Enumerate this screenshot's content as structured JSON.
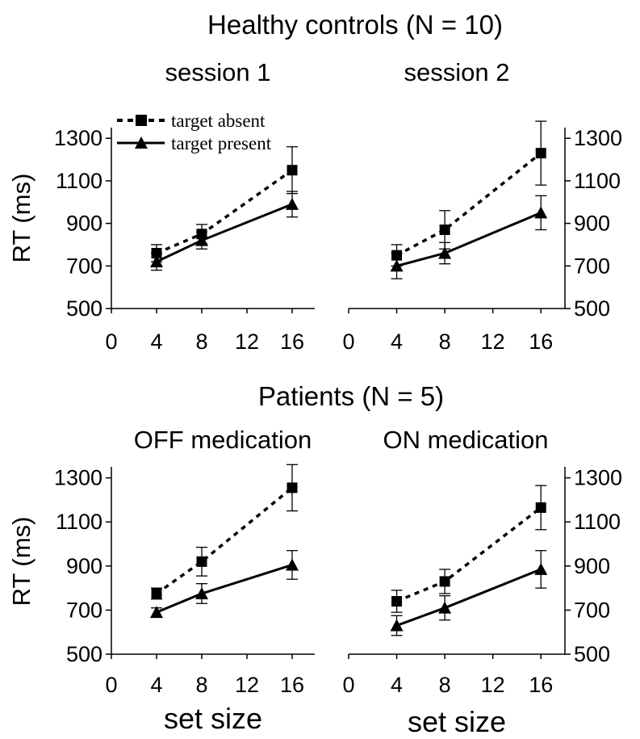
{
  "titles": {
    "top": "Healthy controls (N = 10)",
    "bottom": "Patients (N = 5)"
  },
  "legend": {
    "absent_label": "target absent",
    "present_label": "target present"
  },
  "colors": {
    "ink": "#000000",
    "background": "#ffffff"
  },
  "chart_data": [
    {
      "type": "line",
      "title": "session 1",
      "group": "Healthy controls (N = 10)",
      "xlabel": "",
      "ylabel": "RT (ms)",
      "xlim": [
        0,
        18
      ],
      "ylim": [
        500,
        1350
      ],
      "xticks": [
        0,
        4,
        8,
        12,
        16
      ],
      "yticks": [
        500,
        700,
        900,
        1100,
        1300
      ],
      "x": [
        4,
        8,
        16
      ],
      "series": [
        {
          "name": "target absent",
          "style": "dashed",
          "marker": "square",
          "values": [
            760,
            850,
            1150
          ],
          "error": [
            40,
            45,
            110
          ]
        },
        {
          "name": "target present",
          "style": "solid",
          "marker": "triangle",
          "values": [
            720,
            820,
            990
          ],
          "error": [
            40,
            40,
            60
          ]
        }
      ]
    },
    {
      "type": "line",
      "title": "session 2",
      "group": "Healthy controls (N = 10)",
      "xlabel": "",
      "ylabel": "",
      "xlim": [
        0,
        18
      ],
      "ylim": [
        500,
        1350
      ],
      "xticks": [
        0,
        4,
        8,
        12,
        16
      ],
      "yticks": [
        500,
        700,
        900,
        1100,
        1300
      ],
      "x": [
        4,
        8,
        16
      ],
      "series": [
        {
          "name": "target absent",
          "style": "dashed",
          "marker": "square",
          "values": [
            750,
            870,
            1230
          ],
          "error": [
            50,
            90,
            150
          ]
        },
        {
          "name": "target present",
          "style": "solid",
          "marker": "triangle",
          "values": [
            700,
            760,
            950
          ],
          "error": [
            60,
            50,
            80
          ]
        }
      ]
    },
    {
      "type": "line",
      "title": "OFF medication",
      "group": "Patients (N = 5)",
      "xlabel": "set size",
      "ylabel": "RT (ms)",
      "xlim": [
        0,
        18
      ],
      "ylim": [
        500,
        1350
      ],
      "xticks": [
        0,
        4,
        8,
        12,
        16
      ],
      "yticks": [
        500,
        700,
        900,
        1100,
        1300
      ],
      "x": [
        4,
        8,
        16
      ],
      "series": [
        {
          "name": "target absent",
          "style": "dashed",
          "marker": "square",
          "values": [
            775,
            920,
            1255
          ],
          "error": [
            25,
            65,
            105
          ]
        },
        {
          "name": "target present",
          "style": "solid",
          "marker": "triangle",
          "values": [
            690,
            775,
            905
          ],
          "error": [
            20,
            45,
            65
          ]
        }
      ]
    },
    {
      "type": "line",
      "title": "ON medication",
      "group": "Patients (N = 5)",
      "xlabel": "set size",
      "ylabel": "",
      "xlim": [
        0,
        18
      ],
      "ylim": [
        500,
        1350
      ],
      "xticks": [
        0,
        4,
        8,
        12,
        16
      ],
      "yticks": [
        500,
        700,
        900,
        1100,
        1300
      ],
      "x": [
        4,
        8,
        16
      ],
      "series": [
        {
          "name": "target absent",
          "style": "dashed",
          "marker": "square",
          "values": [
            740,
            830,
            1165
          ],
          "error": [
            50,
            55,
            100
          ]
        },
        {
          "name": "target present",
          "style": "solid",
          "marker": "triangle",
          "values": [
            630,
            710,
            885
          ],
          "error": [
            45,
            55,
            85
          ]
        }
      ]
    }
  ]
}
